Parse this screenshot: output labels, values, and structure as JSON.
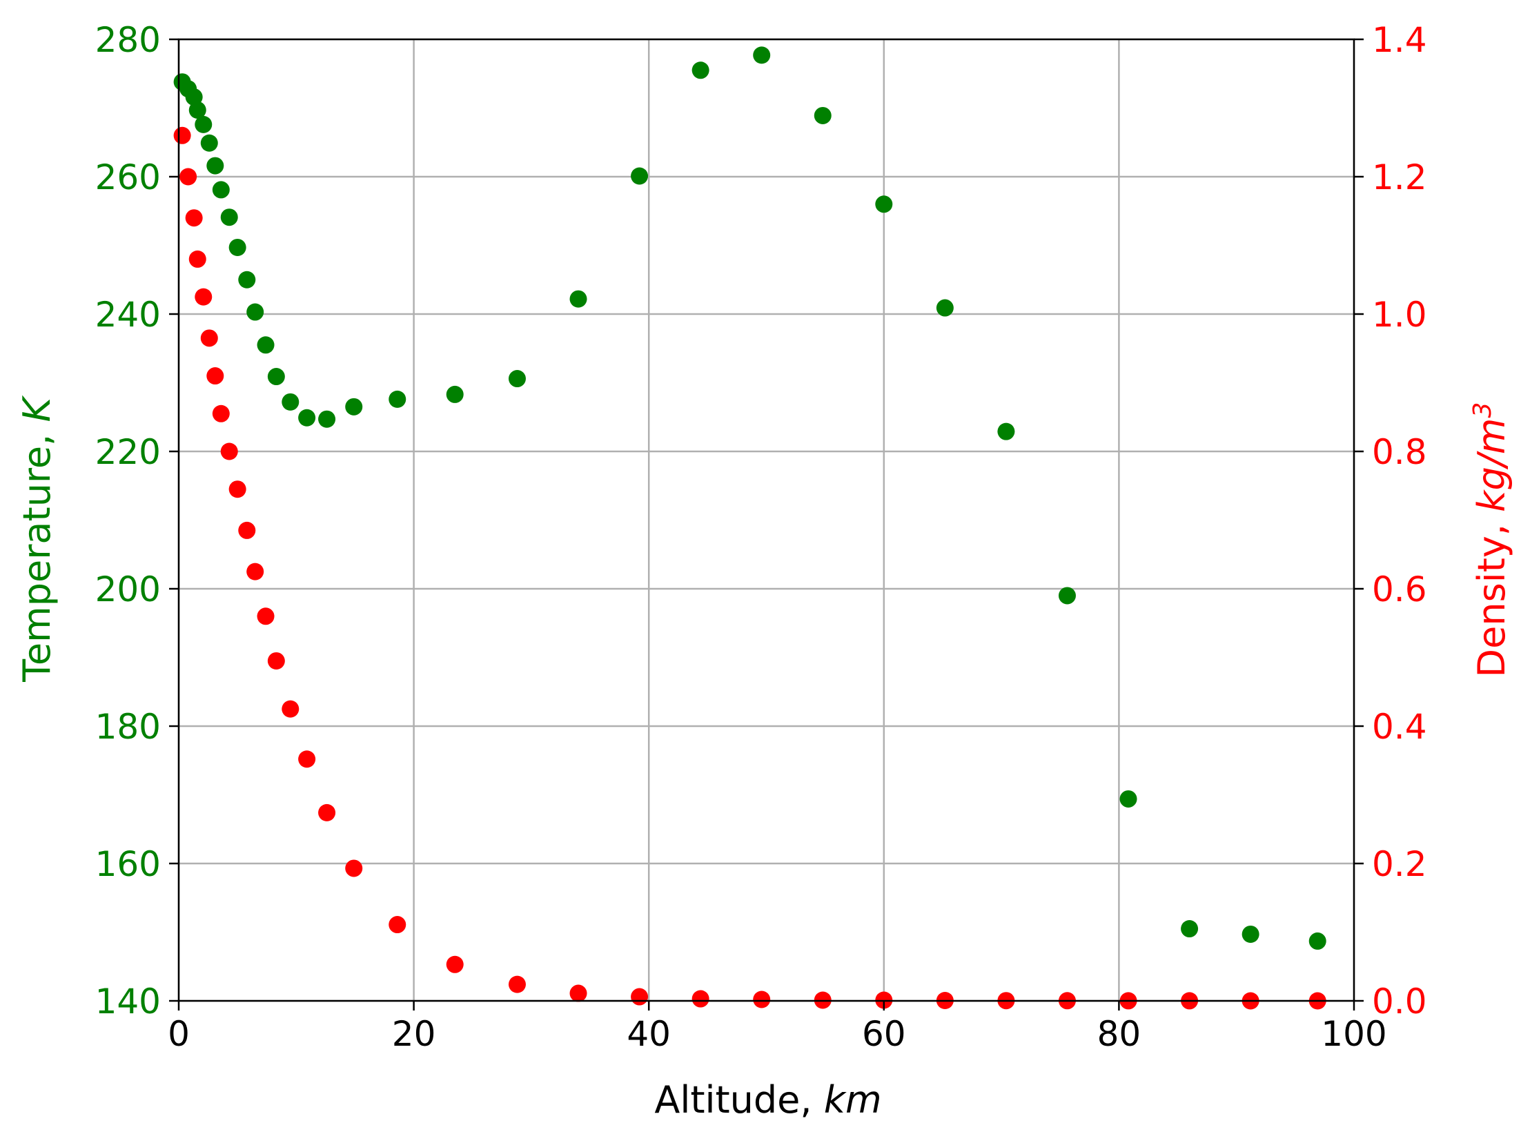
{
  "chart_data": {
    "type": "scatter",
    "title": "",
    "xlabel": {
      "text": "Altitude, ",
      "unit": "km"
    },
    "ylabel_left": {
      "text": "Temperature, ",
      "unit": "K",
      "color": "#008000"
    },
    "ylabel_right": {
      "text": "Density, ",
      "unit": "kg/m",
      "unit_superscript": "3",
      "color": "#ff0000"
    },
    "xlim": [
      0,
      100
    ],
    "ylim_left": [
      140,
      280
    ],
    "ylim_right": [
      0.0,
      1.4
    ],
    "grid": true,
    "x_ticks": [
      "0",
      "20",
      "40",
      "60",
      "80",
      "100"
    ],
    "y_left_ticks": [
      "140",
      "160",
      "180",
      "200",
      "220",
      "240",
      "260",
      "280"
    ],
    "y_right_ticks": [
      "0.0",
      "0.2",
      "0.4",
      "0.6",
      "0.8",
      "1.0",
      "1.2",
      "1.4"
    ],
    "colors": {
      "temperature": "#008000",
      "density": "#ff0000",
      "grid": "#b0b0b0",
      "axis": "#000000"
    },
    "series": [
      {
        "axis": "left",
        "color": "#008000",
        "x": [
          0.3,
          0.8,
          1.3,
          1.6,
          2.1,
          2.6,
          3.1,
          3.6,
          4.3,
          5.0,
          5.8,
          6.5,
          7.4,
          8.3,
          9.5,
          10.9,
          12.6,
          14.9,
          18.6,
          23.5,
          28.8,
          34.0,
          39.2,
          44.4,
          49.6,
          54.8,
          60.0,
          65.2,
          70.4,
          75.6,
          80.8,
          86.0,
          91.2,
          96.9
        ],
        "y": [
          273.8,
          272.8,
          271.6,
          269.7,
          267.6,
          264.9,
          261.6,
          258.1,
          254.1,
          249.7,
          245.0,
          240.3,
          235.5,
          230.9,
          227.2,
          224.9,
          224.7,
          226.5,
          227.6,
          228.3,
          230.6,
          242.2,
          260.1,
          275.5,
          277.7,
          268.9,
          256.0,
          240.9,
          222.9,
          199.0,
          169.4,
          150.5,
          149.7,
          148.7
        ]
      },
      {
        "axis": "right",
        "color": "#ff0000",
        "x": [
          0.3,
          0.8,
          1.3,
          1.6,
          2.1,
          2.6,
          3.1,
          3.6,
          4.3,
          5.0,
          5.8,
          6.5,
          7.4,
          8.3,
          9.5,
          10.9,
          12.6,
          14.9,
          18.6,
          23.5,
          28.8,
          34.0,
          39.2,
          44.4,
          49.6,
          54.8,
          60.0,
          65.2,
          70.4,
          75.6,
          80.8,
          86.0,
          91.2,
          96.9
        ],
        "y": [
          1.26,
          1.2,
          1.14,
          1.08,
          1.025,
          0.965,
          0.91,
          0.855,
          0.8,
          0.745,
          0.685,
          0.625,
          0.56,
          0.495,
          0.425,
          0.352,
          0.274,
          0.193,
          0.111,
          0.053,
          0.024,
          0.011,
          0.006,
          0.003,
          0.002,
          0.001,
          0.001,
          0.0005,
          0.0003,
          0.0002,
          0.0001,
          0.0001,
          0.0,
          0.0
        ]
      }
    ]
  }
}
